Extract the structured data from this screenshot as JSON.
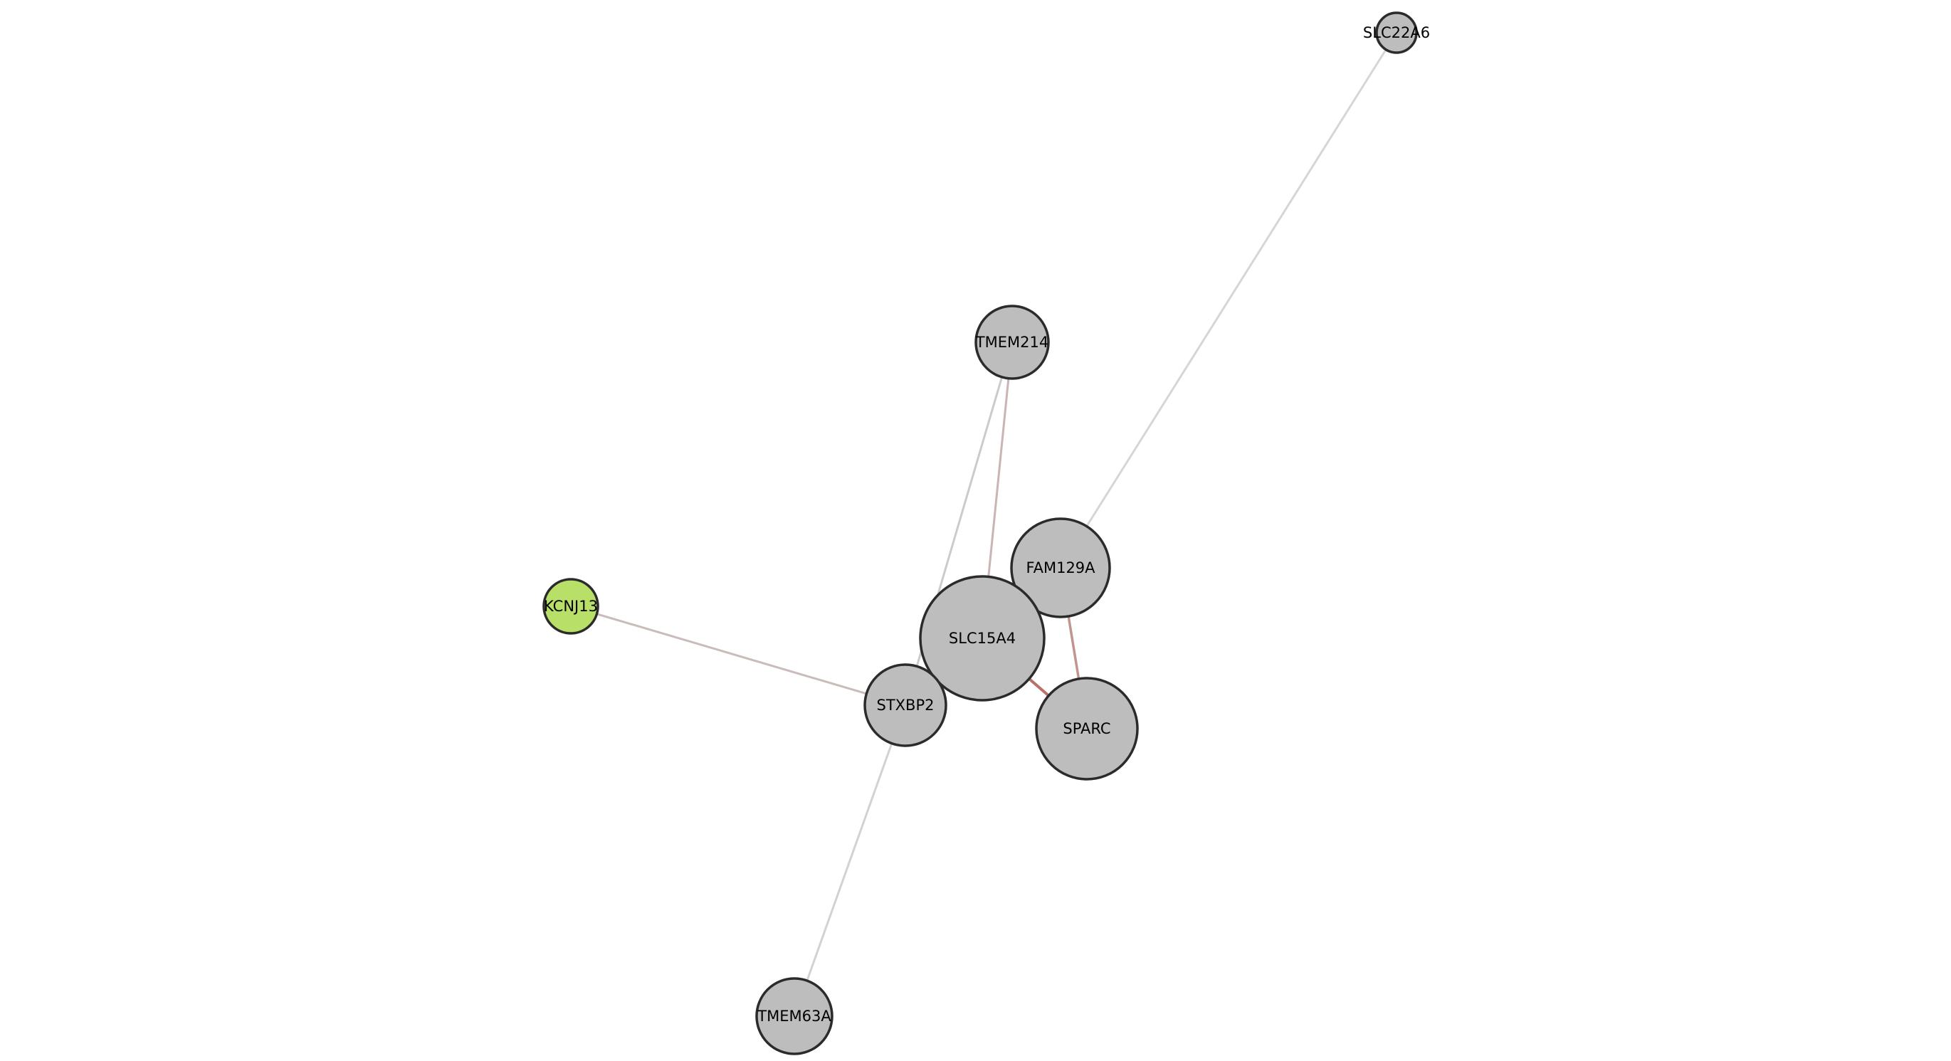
{
  "network": {
    "nodes": [
      {
        "id": "SLC22A6",
        "label": "SLC22A6",
        "color": "#bdbdbd"
      },
      {
        "id": "TMEM214",
        "label": "TMEM214",
        "color": "#bdbdbd"
      },
      {
        "id": "FAM129A",
        "label": "FAM129A",
        "color": "#bdbdbd"
      },
      {
        "id": "KCNJ13",
        "label": "KCNJ13",
        "color": "#b8e068"
      },
      {
        "id": "SLC15A4",
        "label": "SLC15A4",
        "color": "#bdbdbd"
      },
      {
        "id": "STXBP2",
        "label": "STXBP2",
        "color": "#bdbdbd"
      },
      {
        "id": "SPARC",
        "label": "SPARC",
        "color": "#bdbdbd"
      },
      {
        "id": "TMEM63A",
        "label": "TMEM63A",
        "color": "#bdbdbd"
      }
    ],
    "edges": [
      {
        "source": "SLC22A6",
        "target": "FAM129A",
        "color": "#d6d6d6"
      },
      {
        "source": "TMEM214",
        "target": "SLC15A4",
        "color": "#cbb4b4"
      },
      {
        "source": "TMEM214",
        "target": "STXBP2",
        "color": "#cfcaca"
      },
      {
        "source": "KCNJ13",
        "target": "STXBP2",
        "color": "#cbbcbc"
      },
      {
        "source": "STXBP2",
        "target": "TMEM63A",
        "color": "#d2d2d2"
      },
      {
        "source": "SLC15A4",
        "target": "SPARC",
        "color": "#b7736a"
      },
      {
        "source": "FAM129A",
        "target": "SPARC",
        "color": "#c09590"
      }
    ]
  }
}
